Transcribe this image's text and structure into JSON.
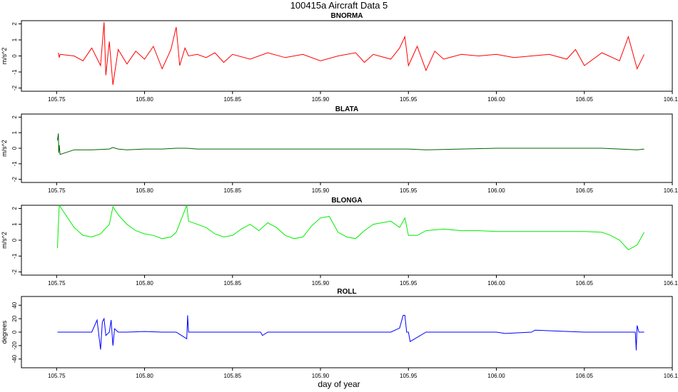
{
  "figure": {
    "title": "100415a   Aircraft Data 5",
    "xlabel": "day of year"
  },
  "chart_data": [
    {
      "type": "line",
      "title": "BNORMA",
      "ylabel": "m/s^2",
      "color": "#ff0000",
      "xlim": [
        105.73,
        106.1
      ],
      "ylim": [
        -2.2,
        2.2
      ],
      "xticks": [
        105.75,
        105.8,
        105.85,
        105.9,
        105.95,
        106.0,
        106.05,
        106.1
      ],
      "xtick_labels": [
        "105.75",
        "105.80",
        "105.85",
        "105.90",
        "105.95",
        "106.00",
        "106.05",
        "106.10"
      ],
      "yticks": [
        -2,
        -1,
        0,
        1,
        2
      ],
      "ytick_labels": [
        "-2",
        "-1",
        "0",
        "1",
        "2"
      ],
      "series": [
        {
          "x": [
            105.751,
            105.7515,
            105.752,
            105.76,
            105.765,
            105.77,
            105.775,
            105.777,
            105.778,
            105.78,
            105.782,
            105.785,
            105.79,
            105.795,
            105.8,
            105.805,
            105.81,
            105.815,
            105.818,
            105.82,
            105.823,
            105.825,
            105.83,
            105.835,
            105.84,
            105.845,
            105.85,
            105.86,
            105.87,
            105.88,
            105.89,
            105.9,
            105.91,
            105.92,
            105.925,
            105.93,
            105.94,
            105.945,
            105.948,
            105.95,
            105.955,
            105.96,
            105.965,
            105.97,
            105.98,
            105.99,
            106.0,
            106.01,
            106.02,
            106.03,
            106.04,
            106.045,
            106.05,
            106.06,
            106.07,
            106.075,
            106.08,
            106.084
          ],
          "y": [
            0.2,
            -0.1,
            0.1,
            0.0,
            -0.3,
            0.5,
            -0.6,
            2.1,
            -1.2,
            0.9,
            -1.8,
            0.4,
            -0.5,
            0.3,
            -0.2,
            0.6,
            -0.8,
            0.4,
            1.8,
            -0.6,
            0.5,
            0.0,
            0.1,
            -0.1,
            0.2,
            -0.4,
            0.1,
            -0.2,
            0.2,
            -0.1,
            0.1,
            -0.3,
            0.0,
            0.2,
            -0.4,
            0.1,
            -0.2,
            0.5,
            1.2,
            -0.6,
            0.6,
            -0.9,
            0.3,
            -0.2,
            0.1,
            0.0,
            0.1,
            -0.1,
            0.0,
            0.1,
            -0.2,
            0.4,
            -0.6,
            0.2,
            -0.3,
            1.2,
            -0.8,
            0.1
          ]
        }
      ]
    },
    {
      "type": "line",
      "title": "BLATA",
      "ylabel": "m/s^2",
      "color": "#006400",
      "xlim": [
        105.73,
        106.1
      ],
      "ylim": [
        -2.2,
        2.2
      ],
      "xticks": [
        105.75,
        105.8,
        105.85,
        105.9,
        105.95,
        106.0,
        106.05,
        106.1
      ],
      "xtick_labels": [
        "105.75",
        "105.80",
        "105.85",
        "105.90",
        "105.95",
        "106.00",
        "106.05",
        "106.10"
      ],
      "yticks": [
        -2,
        -1,
        0,
        1,
        2
      ],
      "ytick_labels": [
        "-2",
        "-1",
        "0",
        "1",
        "2"
      ],
      "series": [
        {
          "x": [
            105.7505,
            105.751,
            105.7512,
            105.7515,
            105.752,
            105.76,
            105.77,
            105.78,
            105.782,
            105.785,
            105.79,
            105.8,
            105.81,
            105.818,
            105.824,
            105.83,
            105.84,
            105.85,
            105.86,
            105.87,
            105.88,
            105.89,
            105.9,
            105.92,
            105.94,
            105.95,
            105.96,
            105.98,
            106.0,
            106.02,
            106.04,
            106.05,
            106.06,
            106.07,
            106.08,
            106.084
          ],
          "y": [
            0.5,
            0.95,
            -0.3,
            0.2,
            -0.4,
            -0.1,
            -0.1,
            -0.05,
            0.05,
            -0.05,
            -0.1,
            -0.05,
            -0.05,
            0.0,
            0.0,
            -0.05,
            -0.05,
            -0.05,
            -0.05,
            -0.05,
            -0.05,
            -0.05,
            -0.05,
            -0.05,
            -0.05,
            -0.05,
            -0.1,
            -0.05,
            0.0,
            0.0,
            0.0,
            0.0,
            0.0,
            -0.05,
            -0.1,
            -0.05
          ]
        }
      ]
    },
    {
      "type": "line",
      "title": "BLONGA",
      "ylabel": "m/s^2",
      "color": "#00ee00",
      "xlim": [
        105.73,
        106.1
      ],
      "ylim": [
        -2.2,
        2.2
      ],
      "xticks": [
        105.75,
        105.8,
        105.85,
        105.9,
        105.95,
        106.0,
        106.05,
        106.1
      ],
      "xtick_labels": [
        "105.75",
        "105.80",
        "105.85",
        "105.90",
        "105.95",
        "106.00",
        "106.05",
        "106.10"
      ],
      "yticks": [
        -2,
        -1,
        0,
        1,
        2
      ],
      "ytick_labels": [
        "-2",
        "-1",
        "0",
        "1",
        "2"
      ],
      "series": [
        {
          "x": [
            105.7505,
            105.751,
            105.7515,
            105.76,
            105.765,
            105.77,
            105.775,
            105.78,
            105.782,
            105.785,
            105.79,
            105.795,
            105.8,
            105.805,
            105.81,
            105.815,
            105.818,
            105.824,
            105.825,
            105.83,
            105.835,
            105.84,
            105.845,
            105.85,
            105.855,
            105.86,
            105.865,
            105.87,
            105.875,
            105.88,
            105.885,
            105.89,
            105.895,
            105.9,
            105.905,
            105.91,
            105.915,
            105.92,
            105.925,
            105.93,
            105.935,
            105.94,
            105.945,
            105.948,
            105.95,
            105.955,
            105.96,
            105.97,
            105.98,
            105.99,
            106.0,
            106.01,
            106.02,
            106.03,
            106.04,
            106.05,
            106.06,
            106.065,
            106.07,
            106.075,
            106.08,
            106.084
          ],
          "y": [
            -0.5,
            1.0,
            2.2,
            0.8,
            0.3,
            0.2,
            0.4,
            1.0,
            2.1,
            1.6,
            1.0,
            0.6,
            0.4,
            0.3,
            0.1,
            0.2,
            0.5,
            2.2,
            1.2,
            1.0,
            0.8,
            0.4,
            0.2,
            0.3,
            0.7,
            1.0,
            0.6,
            1.1,
            0.8,
            0.3,
            0.1,
            0.2,
            0.9,
            1.4,
            1.5,
            0.5,
            0.2,
            0.1,
            0.6,
            1.0,
            1.1,
            1.2,
            0.8,
            1.4,
            0.3,
            0.3,
            0.6,
            0.7,
            0.6,
            0.6,
            0.55,
            0.55,
            0.55,
            0.55,
            0.55,
            0.55,
            0.5,
            0.3,
            0.0,
            -0.6,
            -0.3,
            0.5
          ]
        }
      ]
    },
    {
      "type": "line",
      "title": "ROLL",
      "ylabel": "degrees",
      "color": "#0000ff",
      "xlim": [
        105.73,
        106.1
      ],
      "ylim": [
        -53,
        53
      ],
      "xticks": [
        105.75,
        105.8,
        105.85,
        105.9,
        105.95,
        106.0,
        106.05,
        106.1
      ],
      "xtick_labels": [
        "105.75",
        "105.80",
        "105.85",
        "105.90",
        "105.95",
        "106.00",
        "106.05",
        "106.10"
      ],
      "yticks": [
        -40,
        -20,
        0,
        20,
        40
      ],
      "ytick_labels": [
        "-40",
        "-20",
        "0",
        "20",
        "40"
      ],
      "series": [
        {
          "x": [
            105.7505,
            105.7515,
            105.76,
            105.77,
            105.773,
            105.775,
            105.776,
            105.777,
            105.778,
            105.78,
            105.781,
            105.782,
            105.783,
            105.785,
            105.79,
            105.8,
            105.81,
            105.818,
            105.824,
            105.8245,
            105.825,
            105.826,
            105.83,
            105.85,
            105.866,
            105.867,
            105.87,
            105.9,
            105.94,
            105.945,
            105.947,
            105.948,
            105.949,
            105.95,
            105.951,
            105.96,
            106.0,
            106.005,
            106.02,
            106.022,
            106.05,
            106.079,
            106.0795,
            106.08,
            106.081,
            106.084
          ],
          "y": [
            0,
            0,
            0,
            0,
            18,
            -26,
            15,
            20,
            -5,
            0,
            18,
            -20,
            5,
            0,
            0,
            1,
            0,
            0,
            -10,
            25,
            0,
            0,
            0,
            0,
            0,
            -5,
            0,
            0,
            0,
            6,
            25,
            25,
            0,
            0,
            -14,
            0,
            0,
            -2,
            0,
            3,
            0,
            0,
            -27,
            10,
            0,
            0
          ]
        }
      ]
    }
  ]
}
